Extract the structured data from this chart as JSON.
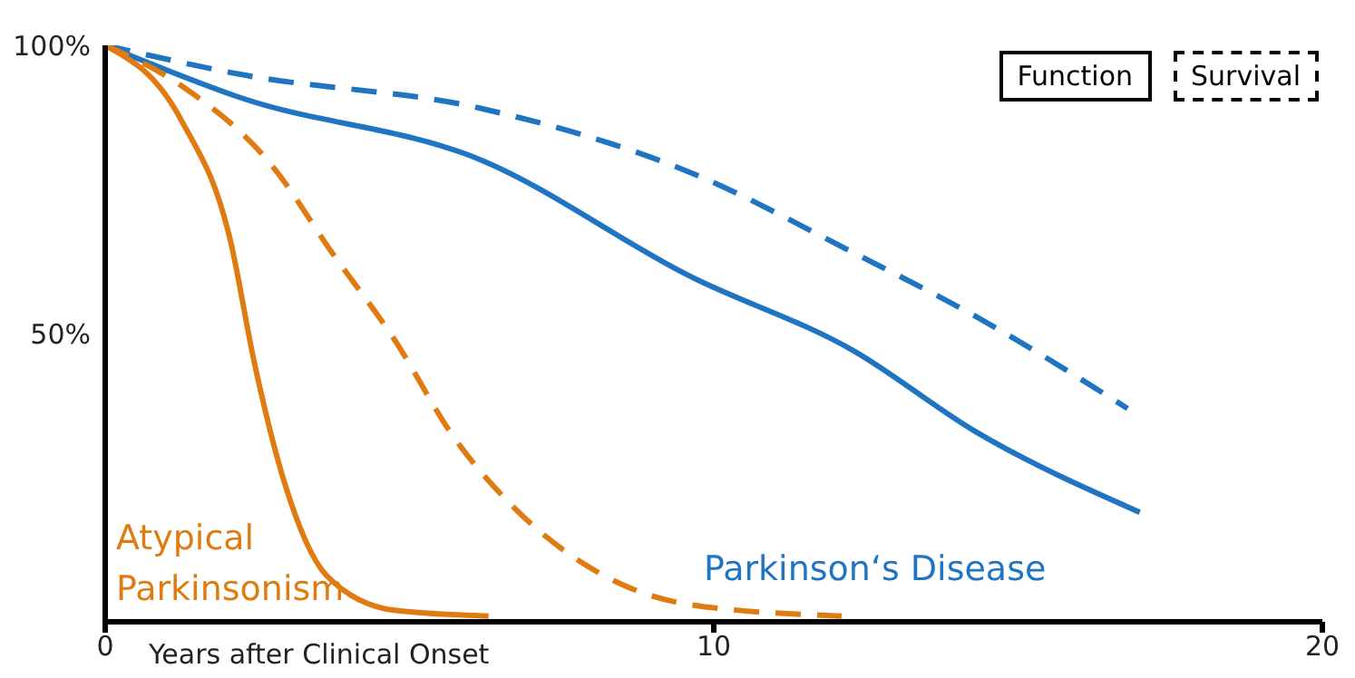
{
  "chart_data": {
    "type": "line",
    "xlabel": "Years after Clinical Onset",
    "xlim": [
      0,
      20
    ],
    "xticks": [
      0,
      10,
      20
    ],
    "ylim": [
      0,
      100
    ],
    "yticks": [
      {
        "value": 100,
        "label": "100%"
      },
      {
        "value": 50,
        "label": "50%"
      }
    ],
    "series": [
      {
        "color": "#1f75c2",
        "line_style": "solid",
        "x": [
          0,
          2.2,
          6.2,
          9.6,
          12.3,
          14.3,
          17.0
        ],
        "values": [
          100,
          91,
          80,
          60,
          47,
          33,
          19
        ]
      },
      {
        "color": "#1f75c2",
        "line_style": "dashed",
        "x": [
          0,
          2.2,
          6.2,
          9.6,
          12.3,
          14.3,
          16.8
        ],
        "values": [
          100,
          95,
          89,
          78,
          64,
          53,
          37
        ]
      },
      {
        "color": "#e07b12",
        "line_style": "solid",
        "x": [
          0,
          1.25,
          2.06,
          2.45,
          2.95,
          3.64,
          4.75,
          6.3
        ],
        "values": [
          100,
          87,
          66,
          45,
          24,
          8,
          2,
          1
        ]
      },
      {
        "color": "#e07b12",
        "line_style": "dashed",
        "x": [
          0,
          1.25,
          2.75,
          3.73,
          4.75,
          5.73,
          6.7,
          8.2,
          9.6,
          12.1
        ],
        "values": [
          100,
          93,
          79,
          64,
          49,
          32,
          20,
          8,
          3,
          1
        ]
      }
    ],
    "annotations": [
      "Function",
      "Survival",
      "Atypical Parkinsonism",
      "Parkinson‘s Disease"
    ]
  }
}
